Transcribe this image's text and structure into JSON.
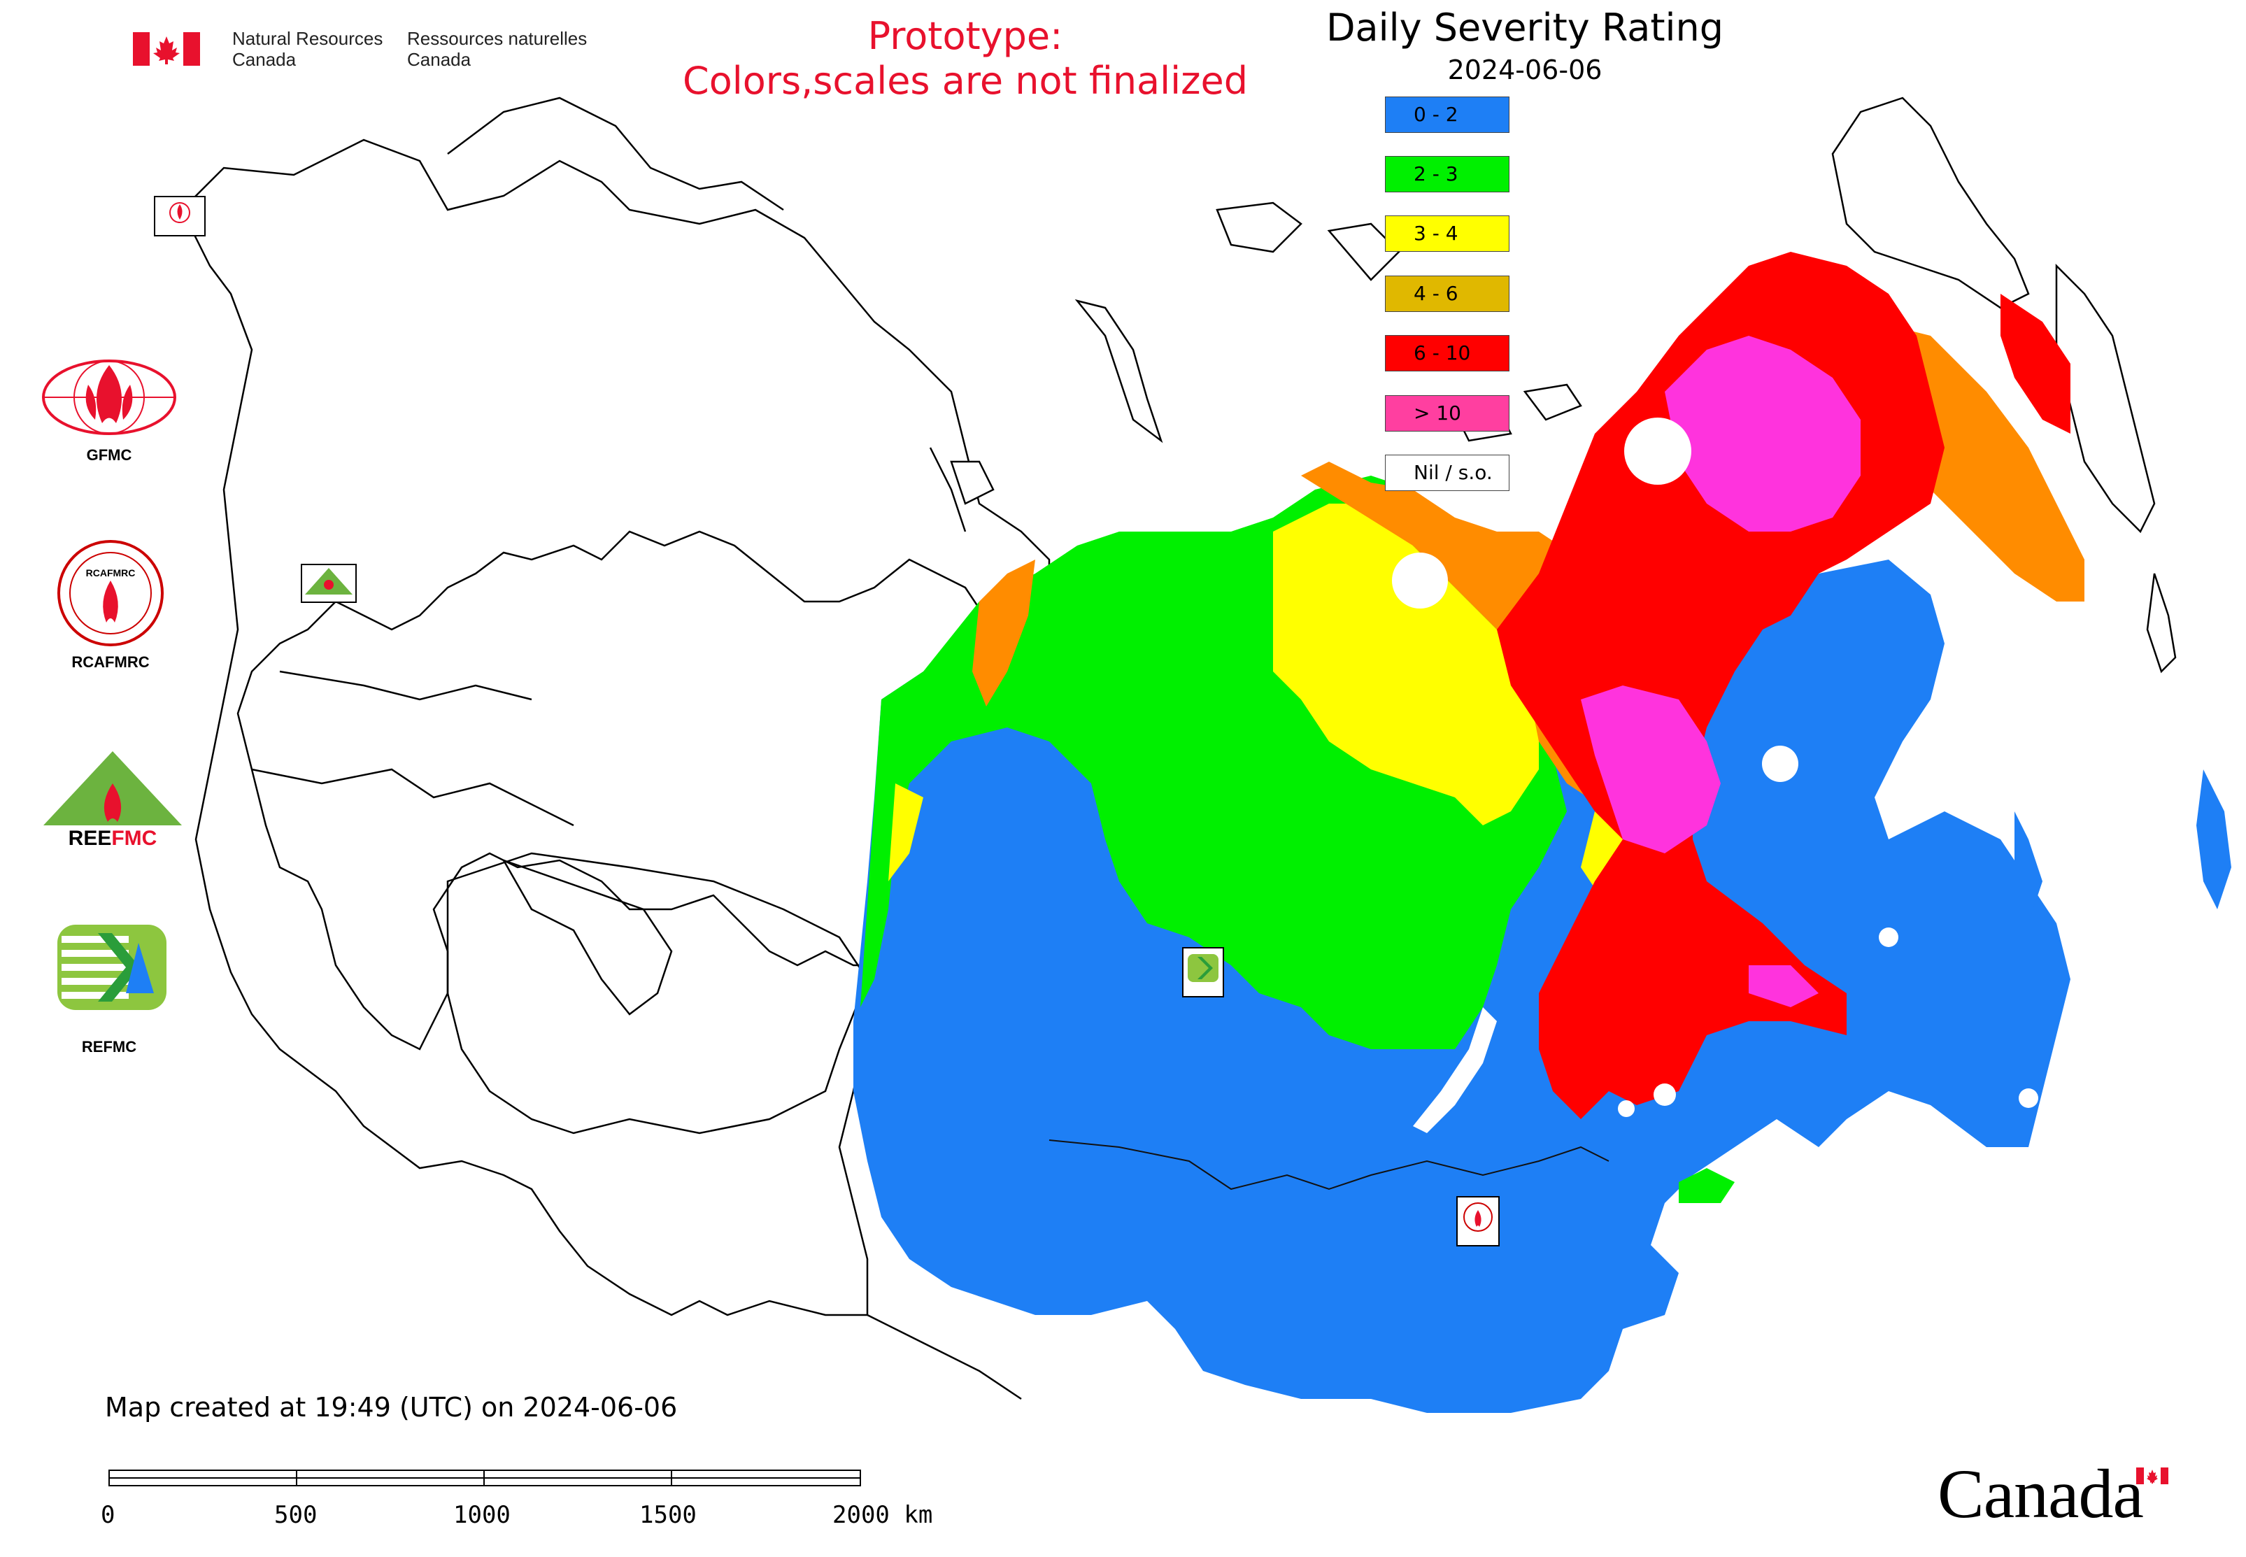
{
  "header": {
    "agency_en_line1": "Natural Resources",
    "agency_en_line2": "Canada",
    "agency_fr_line1": "Ressources naturelles",
    "agency_fr_line2": "Canada",
    "prototype_line1": "Prototype:",
    "prototype_line2": "Colors,scales are not finalized"
  },
  "legend": {
    "title": "Daily Severity Rating",
    "date": "2024-06-06",
    "items": [
      {
        "label": "0 - 2",
        "color": "#1e7ff5"
      },
      {
        "label": "2 - 3",
        "color": "#00f000"
      },
      {
        "label": "3 - 4",
        "color": "#ffff00"
      },
      {
        "label": "4 - 6",
        "color": "#e0b800"
      },
      {
        "label": "6 - 10",
        "color": "#ff0000"
      },
      {
        "label": "> 10",
        "color": "#ff3fa0"
      },
      {
        "label": "Nil / s.o.",
        "color": "#ffffff"
      }
    ]
  },
  "logos": {
    "gfmc": "GFMC",
    "rcafmrc": "RCAFMRC",
    "reefmc": "REEFMC",
    "refmc": "REFMC"
  },
  "footer": {
    "created": "Map created at 19:49 (UTC) on 2024-06-06",
    "scale_labels": [
      "0",
      "500",
      "1000",
      "1500",
      "2000 km"
    ],
    "wordmark": "Canada"
  },
  "colors": {
    "blue": "#1e7ff5",
    "green": "#00f000",
    "yellow": "#ffff00",
    "orange": "#ff8c00",
    "red": "#ff0000",
    "magenta": "#ff33dd"
  }
}
